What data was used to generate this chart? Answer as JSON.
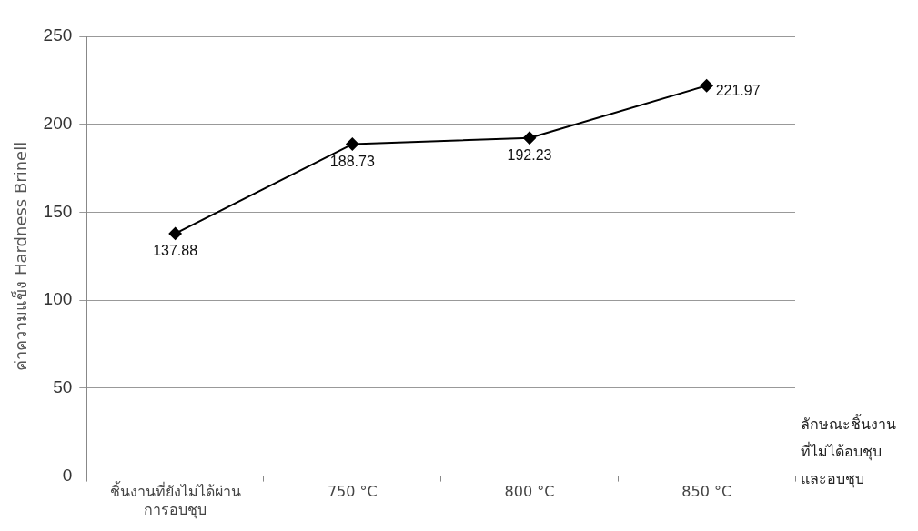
{
  "chart_data": {
    "type": "line",
    "xlabel": "ลักษณะชิ้นงานที่ไม่ได้อบชุบและอบชุบ",
    "ylabel": "ค่าความแข็ง Hardness Brinell",
    "categories": [
      "ชิ้นงานที่ยังไม่ได้ผ่านการอบชุบ",
      "750 °C",
      "800 °C",
      "850 °C"
    ],
    "series": [
      {
        "color": "#000000",
        "values": [
          137.88,
          188.73,
          192.23,
          221.97
        ]
      }
    ],
    "ylim": [
      0,
      250
    ],
    "yticks": [
      0,
      50,
      100,
      150,
      200,
      250
    ],
    "grid": "y",
    "legend": false,
    "marker": "diamond",
    "line_style": "solid",
    "data_labels": true
  }
}
